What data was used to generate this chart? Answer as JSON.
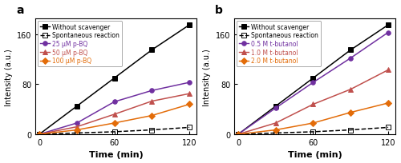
{
  "time": [
    0,
    30,
    60,
    90,
    120
  ],
  "panel_a": {
    "label": "a",
    "series": [
      {
        "label": "Without scavenger",
        "values": [
          0,
          45,
          90,
          135,
          175
        ],
        "color": "#000000",
        "marker": "s",
        "linestyle": "-",
        "fillstyle": "full"
      },
      {
        "label": "Spontaneous reaction",
        "values": [
          0,
          2,
          4,
          7,
          11
        ],
        "color": "#000000",
        "marker": "s",
        "linestyle": "--",
        "fillstyle": "none"
      },
      {
        "label": "25 μM p-BQ",
        "values": [
          0,
          18,
          52,
          70,
          83
        ],
        "color": "#7030a0",
        "marker": "o",
        "linestyle": "-",
        "fillstyle": "full"
      },
      {
        "label": "50 μM p-BQ",
        "values": [
          0,
          12,
          32,
          53,
          65
        ],
        "color": "#c0504d",
        "marker": "^",
        "linestyle": "-",
        "fillstyle": "full"
      },
      {
        "label": "100 μM p-BQ",
        "values": [
          0,
          7,
          18,
          30,
          48
        ],
        "color": "#e36c09",
        "marker": "D",
        "linestyle": "-",
        "fillstyle": "full"
      }
    ],
    "ylim": [
      0,
      185
    ],
    "yticks": [
      0,
      80,
      160
    ],
    "ylabel": "Intensity (a.u.)",
    "xlabel": "Time (min)"
  },
  "panel_b": {
    "label": "b",
    "series": [
      {
        "label": "Without scavenger",
        "values": [
          0,
          45,
          90,
          135,
          175
        ],
        "color": "#000000",
        "marker": "s",
        "linestyle": "-",
        "fillstyle": "full"
      },
      {
        "label": "Spontaneous reaction",
        "values": [
          0,
          2,
          4,
          7,
          11
        ],
        "color": "#000000",
        "marker": "s",
        "linestyle": "--",
        "fillstyle": "none"
      },
      {
        "label": "0.5 M t-butanol",
        "values": [
          0,
          42,
          83,
          122,
          163
        ],
        "color": "#7030a0",
        "marker": "o",
        "linestyle": "-",
        "fillstyle": "full"
      },
      {
        "label": "1.0 M t-butanol",
        "values": [
          0,
          18,
          48,
          72,
          103
        ],
        "color": "#c0504d",
        "marker": "^",
        "linestyle": "-",
        "fillstyle": "full"
      },
      {
        "label": "2.0 M t-butanol",
        "values": [
          0,
          7,
          18,
          35,
          50
        ],
        "color": "#e36c09",
        "marker": "D",
        "linestyle": "-",
        "fillstyle": "full"
      }
    ],
    "ylim": [
      0,
      185
    ],
    "yticks": [
      0,
      80,
      160
    ],
    "ylabel": "Intensity (a.u.)",
    "xlabel": "Time (min)"
  },
  "xticks": [
    0,
    60,
    120
  ],
  "xticklabels": [
    "0",
    "60",
    "120"
  ],
  "xlim": [
    -3,
    126
  ],
  "legend_text_colors_a": [
    "#000000",
    "#000000",
    "#7030a0",
    "#c0504d",
    "#e36c09"
  ],
  "legend_text_colors_b": [
    "#000000",
    "#000000",
    "#7030a0",
    "#c0504d",
    "#e36c09"
  ]
}
